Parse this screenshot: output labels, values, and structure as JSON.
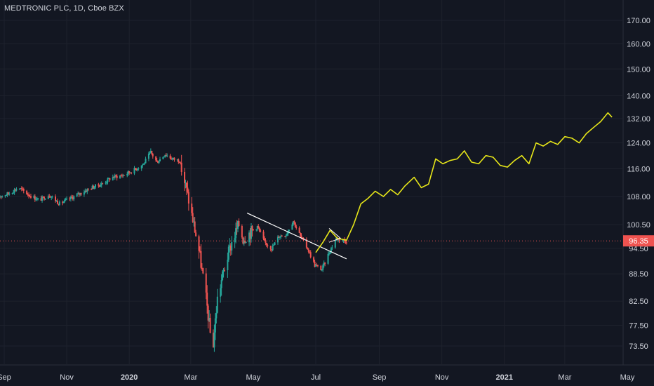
{
  "header": {
    "title": "MEDTRONIC PLC, 1D, Cboe BZX"
  },
  "colors": {
    "background": "#131722",
    "grid": "#1e222d",
    "up": "#26a69a",
    "down": "#ef5350",
    "projection": "#e6e619",
    "trendline": "#ffffff",
    "text": "#d1d4dc"
  },
  "chart_data": {
    "type": "candlestick",
    "x_axis": {
      "ticks": [
        {
          "label": "Sep",
          "date": "2019-09-01",
          "bold": false
        },
        {
          "label": "Nov",
          "date": "2019-11-01",
          "bold": false
        },
        {
          "label": "2020",
          "date": "2020-01-01",
          "bold": true
        },
        {
          "label": "Mar",
          "date": "2020-03-01",
          "bold": false
        },
        {
          "label": "May",
          "date": "2020-05-01",
          "bold": false
        },
        {
          "label": "Jul",
          "date": "2020-07-01",
          "bold": false
        },
        {
          "label": "Sep",
          "date": "2020-09-01",
          "bold": false
        },
        {
          "label": "Nov",
          "date": "2020-11-01",
          "bold": false
        },
        {
          "label": "2021",
          "date": "2021-01-01",
          "bold": true
        },
        {
          "label": "Mar",
          "date": "2021-03-01",
          "bold": false
        },
        {
          "label": "May",
          "date": "2021-05-01",
          "bold": false
        }
      ]
    },
    "y_axis": {
      "scale": "log",
      "ticks": [
        "170.00",
        "160.00",
        "150.00",
        "140.00",
        "132.00",
        "124.00",
        "116.00",
        "108.00",
        "100.50",
        "94.50",
        "88.50",
        "82.50",
        "77.50",
        "73.50"
      ]
    },
    "last_price": {
      "value": 96.35,
      "label": "96.35"
    },
    "price_series": [
      [
        "2019-08-26",
        108.0
      ],
      [
        "2019-09-05",
        108.8
      ],
      [
        "2019-09-15",
        110.5
      ],
      [
        "2019-09-25",
        108.5
      ],
      [
        "2019-10-05",
        107.0
      ],
      [
        "2019-10-15",
        108.5
      ],
      [
        "2019-10-25",
        106.0
      ],
      [
        "2019-11-05",
        107.5
      ],
      [
        "2019-11-15",
        109.0
      ],
      [
        "2019-11-25",
        110.5
      ],
      [
        "2019-12-05",
        111.5
      ],
      [
        "2019-12-15",
        113.5
      ],
      [
        "2019-12-25",
        114.0
      ],
      [
        "2020-01-05",
        115.5
      ],
      [
        "2020-01-15",
        117.5
      ],
      [
        "2020-01-22",
        121.0
      ],
      [
        "2020-01-28",
        118.0
      ],
      [
        "2020-02-05",
        120.5
      ],
      [
        "2020-02-12",
        119.0
      ],
      [
        "2020-02-19",
        118.5
      ],
      [
        "2020-02-25",
        111.0
      ],
      [
        "2020-03-02",
        103.0
      ],
      [
        "2020-03-09",
        94.0
      ],
      [
        "2020-03-16",
        83.0
      ],
      [
        "2020-03-20",
        76.0
      ],
      [
        "2020-03-23",
        74.0
      ],
      [
        "2020-03-27",
        83.0
      ],
      [
        "2020-04-03",
        90.0
      ],
      [
        "2020-04-10",
        96.0
      ],
      [
        "2020-04-17",
        100.5
      ],
      [
        "2020-04-21",
        97.0
      ],
      [
        "2020-04-28",
        98.5
      ],
      [
        "2020-05-05",
        100.0
      ],
      [
        "2020-05-12",
        96.0
      ],
      [
        "2020-05-19",
        94.5
      ],
      [
        "2020-05-26",
        97.5
      ],
      [
        "2020-06-02",
        98.0
      ],
      [
        "2020-06-09",
        101.5
      ],
      [
        "2020-06-16",
        97.5
      ],
      [
        "2020-06-23",
        94.5
      ],
      [
        "2020-06-30",
        90.5
      ],
      [
        "2020-07-07",
        89.5
      ],
      [
        "2020-07-14",
        93.5
      ],
      [
        "2020-07-21",
        97.0
      ],
      [
        "2020-07-28",
        96.5
      ],
      [
        "2020-07-31",
        96.35
      ]
    ],
    "projection_series": [
      [
        "2020-07-01",
        93.5
      ],
      [
        "2020-07-08",
        96.0
      ],
      [
        "2020-07-15",
        99.0
      ],
      [
        "2020-07-22",
        97.0
      ],
      [
        "2020-07-31",
        96.5
      ],
      [
        "2020-08-07",
        100.5
      ],
      [
        "2020-08-14",
        106.0
      ],
      [
        "2020-08-21",
        107.5
      ],
      [
        "2020-08-28",
        109.5
      ],
      [
        "2020-09-05",
        108.0
      ],
      [
        "2020-09-12",
        110.0
      ],
      [
        "2020-09-19",
        108.5
      ],
      [
        "2020-09-26",
        111.0
      ],
      [
        "2020-10-05",
        113.5
      ],
      [
        "2020-10-12",
        110.5
      ],
      [
        "2020-10-19",
        111.5
      ],
      [
        "2020-10-26",
        119.0
      ],
      [
        "2020-11-02",
        117.5
      ],
      [
        "2020-11-09",
        118.5
      ],
      [
        "2020-11-16",
        119.0
      ],
      [
        "2020-11-23",
        121.5
      ],
      [
        "2020-11-30",
        118.0
      ],
      [
        "2020-12-07",
        117.5
      ],
      [
        "2020-12-14",
        120.0
      ],
      [
        "2020-12-21",
        119.5
      ],
      [
        "2020-12-28",
        117.0
      ],
      [
        "2021-01-04",
        116.5
      ],
      [
        "2021-01-11",
        118.5
      ],
      [
        "2021-01-18",
        120.0
      ],
      [
        "2021-01-25",
        117.5
      ],
      [
        "2021-02-01",
        124.0
      ],
      [
        "2021-02-08",
        123.0
      ],
      [
        "2021-02-15",
        124.5
      ],
      [
        "2021-02-22",
        123.5
      ],
      [
        "2021-03-01",
        126.0
      ],
      [
        "2021-03-08",
        125.5
      ],
      [
        "2021-03-15",
        124.0
      ],
      [
        "2021-03-22",
        127.0
      ],
      [
        "2021-03-29",
        129.0
      ],
      [
        "2021-04-05",
        131.0
      ],
      [
        "2021-04-12",
        134.0
      ],
      [
        "2021-04-16",
        132.5
      ]
    ],
    "trendline": [
      [
        "2020-04-25",
        103.5
      ],
      [
        "2020-07-31",
        92.0
      ]
    ],
    "triangle": [
      [
        "2020-07-14",
        99.5
      ],
      [
        "2020-07-25",
        97.0
      ],
      [
        "2020-07-14",
        96.0
      ]
    ]
  }
}
